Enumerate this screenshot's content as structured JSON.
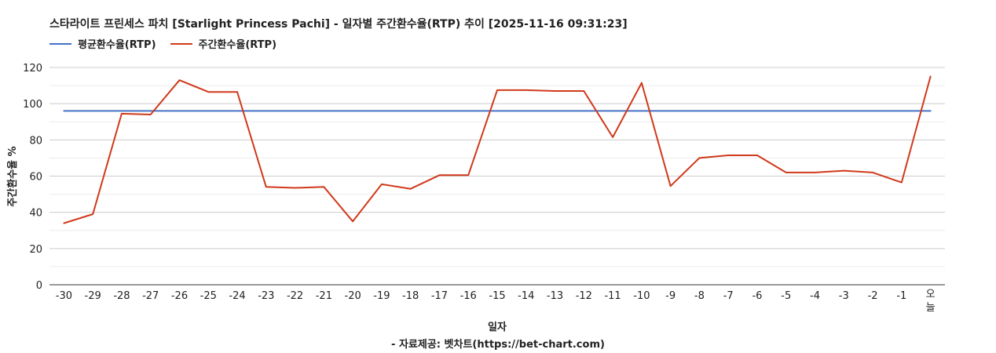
{
  "chart_data": {
    "type": "line",
    "title": "스타라이트 프린세스 파치 [Starlight Princess Pachi] - 일자별 주간환수율(RTP) 추이 [2025-11-16 09:31:23]",
    "xlabel": "일자",
    "ylabel": "주간환수율 %",
    "source": "- 자료제공: 벳차트(https://bet-chart.com)",
    "ylim": [
      0,
      120
    ],
    "yticks": [
      0,
      20,
      40,
      60,
      80,
      100,
      120
    ],
    "grid": true,
    "legend_position": "top-left",
    "categories": [
      "-30",
      "-29",
      "-28",
      "-27",
      "-26",
      "-25",
      "-24",
      "-23",
      "-22",
      "-21",
      "-20",
      "-19",
      "-18",
      "-17",
      "-16",
      "-15",
      "-14",
      "-13",
      "-12",
      "-11",
      "-10",
      "-9",
      "-8",
      "-7",
      "-6",
      "-5",
      "-4",
      "-3",
      "-2",
      "-1",
      "오늘"
    ],
    "series": [
      {
        "name": "평균환수율(RTP)",
        "color": "#4472c4",
        "values": [
          96,
          96,
          96,
          96,
          96,
          96,
          96,
          96,
          96,
          96,
          96,
          96,
          96,
          96,
          96,
          96,
          96,
          96,
          96,
          96,
          96,
          96,
          96,
          96,
          96,
          96,
          96,
          96,
          96,
          96,
          96
        ]
      },
      {
        "name": "주간환수율(RTP)",
        "color": "#d0391b",
        "values": [
          34,
          39,
          94.5,
          94,
          113,
          106.5,
          106.5,
          54,
          53.5,
          54,
          35,
          55.5,
          53,
          60.5,
          60.5,
          107.5,
          107.5,
          107,
          107,
          81.5,
          111.5,
          54.5,
          70,
          71.5,
          71.5,
          62,
          62,
          63,
          62,
          56.5,
          115
        ]
      }
    ]
  }
}
